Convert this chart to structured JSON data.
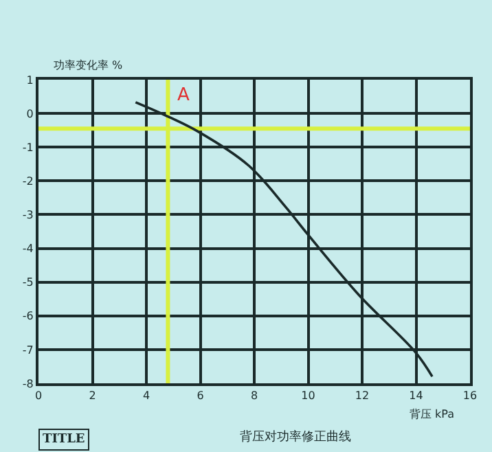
{
  "chart_data": {
    "type": "line",
    "title": "背压对功率修正曲线",
    "xlabel": "背压 kPa",
    "ylabel": "功率变化率 %",
    "series": [
      {
        "color": "#1a2a2a",
        "x": [
          3.6,
          4.66,
          5.9,
          7.8,
          9.15,
          10,
          11.9,
          14,
          14.6
        ],
        "values": [
          0.33,
          -0.04,
          -0.53,
          -1.55,
          -2.76,
          -3.6,
          -5.4,
          -7.1,
          -7.8
        ]
      }
    ],
    "xlim": [
      0,
      16
    ],
    "xticks": [
      0,
      2,
      4,
      6,
      8,
      10,
      12,
      14,
      16
    ],
    "ylim": [
      -8,
      1
    ],
    "yticks": [
      1,
      0,
      -1,
      -2,
      -3,
      -4,
      -5,
      -6,
      -7,
      -8
    ],
    "grid": true,
    "marker": "none",
    "line_style": "solid",
    "ref_lines": [
      {
        "axis": "x",
        "value": 4.8,
        "color": "#d8f040"
      },
      {
        "axis": "y",
        "value": -0.45,
        "color": "#d8f040"
      }
    ],
    "annotations": [
      {
        "text": "A",
        "x": 4.66,
        "y": -0.04
      },
      "TITLE"
    ]
  }
}
